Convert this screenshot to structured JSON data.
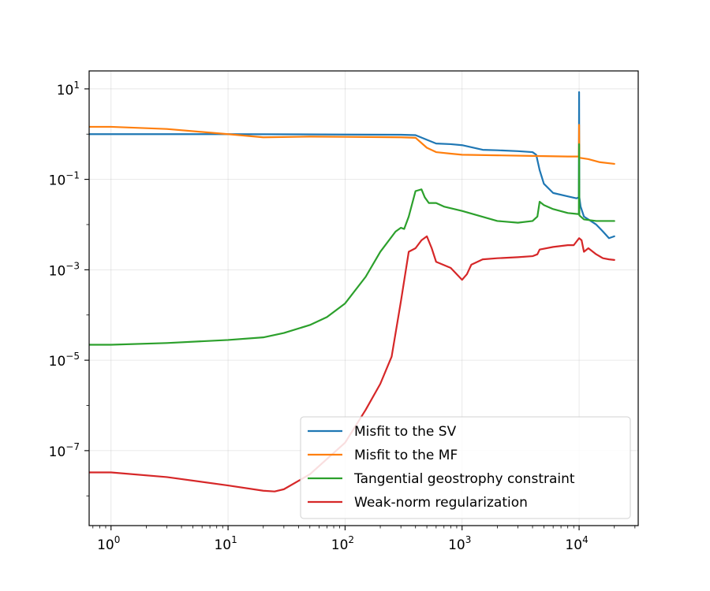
{
  "chart_data": {
    "type": "line",
    "title": "",
    "xlabel": "",
    "ylabel": "",
    "xscale": "log",
    "yscale": "log",
    "xlim": [
      0.65,
      32000
    ],
    "ylim": [
      2.2e-09,
      25
    ],
    "grid": true,
    "legend_position": "lower-right",
    "x_ticks": [
      {
        "base": "10",
        "exp": "0",
        "value": 1
      },
      {
        "base": "10",
        "exp": "1",
        "value": 10
      },
      {
        "base": "10",
        "exp": "2",
        "value": 100
      },
      {
        "base": "10",
        "exp": "3",
        "value": 1000
      },
      {
        "base": "10",
        "exp": "4",
        "value": 10000
      }
    ],
    "y_ticks": [
      {
        "base": "10",
        "exp": "1",
        "value": 10
      },
      {
        "base": "10",
        "exp": "−1",
        "value": 0.1
      },
      {
        "base": "10",
        "exp": "−3",
        "value": 0.001
      },
      {
        "base": "10",
        "exp": "−5",
        "value": 1e-05
      },
      {
        "base": "10",
        "exp": "−7",
        "value": 1e-07
      }
    ],
    "series": [
      {
        "name": "Misfit to the SV",
        "color": "#1f77b4",
        "points": [
          [
            0.65,
            1.0
          ],
          [
            1,
            1.0
          ],
          [
            10,
            1.0
          ],
          [
            100,
            0.98
          ],
          [
            300,
            0.97
          ],
          [
            400,
            0.95
          ],
          [
            500,
            0.75
          ],
          [
            600,
            0.62
          ],
          [
            800,
            0.6
          ],
          [
            1000,
            0.57
          ],
          [
            1500,
            0.45
          ],
          [
            2000,
            0.44
          ],
          [
            3000,
            0.42
          ],
          [
            4000,
            0.4
          ],
          [
            4300,
            0.35
          ],
          [
            4600,
            0.16
          ],
          [
            5000,
            0.08
          ],
          [
            6000,
            0.05
          ],
          [
            8000,
            0.042
          ],
          [
            9500,
            0.038
          ],
          [
            9950,
            0.04
          ],
          [
            10000,
            8.5
          ],
          [
            10050,
            0.04
          ],
          [
            10300,
            0.025
          ],
          [
            11000,
            0.015
          ],
          [
            12000,
            0.013
          ],
          [
            14000,
            0.01
          ],
          [
            16000,
            0.007
          ],
          [
            18000,
            0.005
          ],
          [
            20000,
            0.0055
          ]
        ]
      },
      {
        "name": "Misfit to the MF",
        "color": "#ff7f0e",
        "points": [
          [
            0.65,
            1.45
          ],
          [
            1,
            1.45
          ],
          [
            3,
            1.3
          ],
          [
            10,
            1.0
          ],
          [
            20,
            0.85
          ],
          [
            50,
            0.88
          ],
          [
            100,
            0.87
          ],
          [
            200,
            0.86
          ],
          [
            300,
            0.85
          ],
          [
            400,
            0.83
          ],
          [
            500,
            0.5
          ],
          [
            600,
            0.4
          ],
          [
            800,
            0.37
          ],
          [
            1000,
            0.35
          ],
          [
            2000,
            0.34
          ],
          [
            4000,
            0.33
          ],
          [
            8000,
            0.32
          ],
          [
            9950,
            0.32
          ],
          [
            10000,
            1.6
          ],
          [
            10050,
            0.3
          ],
          [
            12000,
            0.28
          ],
          [
            15000,
            0.24
          ],
          [
            20000,
            0.22
          ]
        ]
      },
      {
        "name": "Tangential geostrophy constraint",
        "color": "#2ca02c",
        "points": [
          [
            0.65,
            2.2e-05
          ],
          [
            1,
            2.2e-05
          ],
          [
            3,
            2.4e-05
          ],
          [
            10,
            2.8e-05
          ],
          [
            20,
            3.2e-05
          ],
          [
            30,
            4e-05
          ],
          [
            50,
            6e-05
          ],
          [
            70,
            9e-05
          ],
          [
            100,
            0.00018
          ],
          [
            150,
            0.0007
          ],
          [
            200,
            0.0025
          ],
          [
            270,
            0.007
          ],
          [
            300,
            0.0085
          ],
          [
            320,
            0.008
          ],
          [
            350,
            0.015
          ],
          [
            400,
            0.055
          ],
          [
            450,
            0.06
          ],
          [
            480,
            0.04
          ],
          [
            520,
            0.03
          ],
          [
            600,
            0.03
          ],
          [
            700,
            0.025
          ],
          [
            1000,
            0.02
          ],
          [
            2000,
            0.012
          ],
          [
            3000,
            0.011
          ],
          [
            4000,
            0.012
          ],
          [
            4400,
            0.015
          ],
          [
            4600,
            0.032
          ],
          [
            5000,
            0.027
          ],
          [
            6000,
            0.022
          ],
          [
            8000,
            0.018
          ],
          [
            9950,
            0.017
          ],
          [
            10000,
            0.6
          ],
          [
            10050,
            0.016
          ],
          [
            11000,
            0.013
          ],
          [
            14000,
            0.012
          ],
          [
            20000,
            0.012
          ]
        ]
      },
      {
        "name": "Weak-norm regularization",
        "color": "#d62728",
        "points": [
          [
            0.65,
            3.3e-08
          ],
          [
            1,
            3.3e-08
          ],
          [
            3,
            2.6e-08
          ],
          [
            10,
            1.7e-08
          ],
          [
            20,
            1.3e-08
          ],
          [
            25,
            1.25e-08
          ],
          [
            30,
            1.4e-08
          ],
          [
            50,
            3e-08
          ],
          [
            100,
            1.5e-07
          ],
          [
            150,
            8e-07
          ],
          [
            200,
            3e-06
          ],
          [
            250,
            1.2e-05
          ],
          [
            300,
            0.0002
          ],
          [
            350,
            0.0025
          ],
          [
            400,
            0.003
          ],
          [
            450,
            0.0045
          ],
          [
            500,
            0.0055
          ],
          [
            550,
            0.003
          ],
          [
            600,
            0.0015
          ],
          [
            800,
            0.0011
          ],
          [
            1000,
            0.0006
          ],
          [
            1100,
            0.0008
          ],
          [
            1200,
            0.0013
          ],
          [
            1500,
            0.0017
          ],
          [
            2000,
            0.0018
          ],
          [
            3000,
            0.0019
          ],
          [
            4000,
            0.002
          ],
          [
            4400,
            0.0022
          ],
          [
            4600,
            0.0028
          ],
          [
            6000,
            0.0032
          ],
          [
            8000,
            0.0035
          ],
          [
            9000,
            0.0035
          ],
          [
            10000,
            0.005
          ],
          [
            10500,
            0.0045
          ],
          [
            11000,
            0.0025
          ],
          [
            12000,
            0.003
          ],
          [
            14000,
            0.0022
          ],
          [
            16000,
            0.0018
          ],
          [
            18000,
            0.0017
          ],
          [
            20000,
            0.00165
          ]
        ]
      }
    ]
  }
}
